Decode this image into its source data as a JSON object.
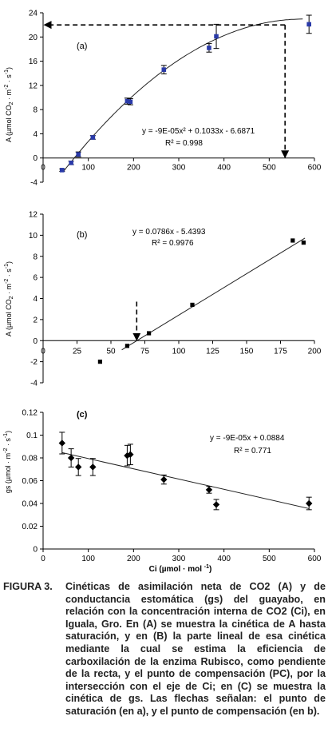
{
  "chart_data": [
    {
      "type": "scatter",
      "panel_label": "(a)",
      "ylabel": "A (µmol CO2 · m-2 · s-1)",
      "xlim": [
        0,
        600
      ],
      "ylim": [
        -4,
        24
      ],
      "xticks": [
        0,
        100,
        200,
        300,
        400,
        500,
        600
      ],
      "yticks": [
        -4,
        0,
        4,
        8,
        12,
        16,
        20,
        24
      ],
      "marker_color": "#2a3aa8",
      "points": [
        {
          "x": 42,
          "y": -2.0,
          "err": 0.2
        },
        {
          "x": 62,
          "y": -0.8,
          "err": 0.3
        },
        {
          "x": 78,
          "y": 0.6,
          "err": 0.4
        },
        {
          "x": 110,
          "y": 3.4,
          "err": 0.3
        },
        {
          "x": 186,
          "y": 9.4,
          "err": 0.5
        },
        {
          "x": 193,
          "y": 9.3,
          "err": 0.5
        },
        {
          "x": 267,
          "y": 14.6,
          "err": 0.7
        },
        {
          "x": 367,
          "y": 18.2,
          "err": 0.7
        },
        {
          "x": 383,
          "y": 20.1,
          "err": 2.0
        },
        {
          "x": 588,
          "y": 22.1,
          "err": 1.5
        }
      ],
      "fit": {
        "type": "poly2",
        "a": -9e-05,
        "b": 0.1033,
        "c": -6.6871,
        "x_from": 45,
        "x_to": 560,
        "x_plateau": 574
      },
      "equation": "y = -9E-05x² + 0.1033x - 6.6871",
      "r2": "R² = 0.998",
      "arrow_h": {
        "y": 22.0,
        "from_x": 535,
        "to_x": 0
      },
      "arrow_v": {
        "x": 535,
        "from_y": 22.0,
        "to_y": 0
      }
    },
    {
      "type": "scatter",
      "panel_label": "(b)",
      "ylabel": "A (µmol CO2 · m-2 · s-1)",
      "xlim": [
        0,
        200
      ],
      "ylim": [
        -4,
        12
      ],
      "xticks": [
        0,
        25,
        50,
        75,
        100,
        125,
        150,
        175,
        200
      ],
      "yticks": [
        -4,
        -2,
        0,
        2,
        4,
        6,
        8,
        10,
        12
      ],
      "marker_color": "#000000",
      "points": [
        {
          "x": 42,
          "y": -2.0
        },
        {
          "x": 62,
          "y": -0.5
        },
        {
          "x": 78,
          "y": 0.7
        },
        {
          "x": 110,
          "y": 3.4
        },
        {
          "x": 184,
          "y": 9.5
        },
        {
          "x": 192,
          "y": 9.3
        }
      ],
      "fit": {
        "type": "linear",
        "a": 0.0786,
        "b": -5.4393,
        "x_from": 58,
        "x_to": 193
      },
      "equation": "y = 0.0786x - 5.4393",
      "r2": "R² = 0.9976",
      "arrow_v": {
        "x": 69,
        "from_y": 3.7,
        "to_y": 0
      }
    },
    {
      "type": "scatter",
      "panel_label": "(c)",
      "ylabel": "gs (µmol · m-2 · s-1)",
      "xlabel": "Ci (µmol · mol -1)",
      "xlim": [
        0,
        600
      ],
      "ylim": [
        0,
        0.12
      ],
      "xticks": [
        0,
        100,
        200,
        300,
        400,
        500,
        600
      ],
      "yticks": [
        0,
        0.02,
        0.04,
        0.06,
        0.08,
        0.1,
        0.12
      ],
      "marker_color": "#000000",
      "points": [
        {
          "x": 42,
          "y": 0.093,
          "err": 0.0095
        },
        {
          "x": 62,
          "y": 0.08,
          "err": 0.008
        },
        {
          "x": 78,
          "y": 0.072,
          "err": 0.0075
        },
        {
          "x": 110,
          "y": 0.072,
          "err": 0.0075
        },
        {
          "x": 186,
          "y": 0.082,
          "err": 0.009
        },
        {
          "x": 193,
          "y": 0.083,
          "err": 0.009
        },
        {
          "x": 267,
          "y": 0.061,
          "err": 0.004
        },
        {
          "x": 367,
          "y": 0.052,
          "err": 0.003
        },
        {
          "x": 383,
          "y": 0.039,
          "err": 0.0045
        },
        {
          "x": 588,
          "y": 0.04,
          "err": 0.0055
        }
      ],
      "fit": {
        "type": "linear",
        "a": -9e-05,
        "b": 0.0884,
        "x_from": 42,
        "x_to": 588
      },
      "equation": "y = -9E-05x + 0.0884",
      "r2": "R² = 0.771"
    }
  ],
  "caption": {
    "label": "FIGURA 3.",
    "text": "Cinéticas de asimilación neta de CO2 (A) y de conductancia estomática (gs) del guayabo, en relación con la concentración interna de CO2 (Ci), en Iguala, Gro. En (A) se muestra la cinética de A hasta saturación, y en (B) la parte lineal de esa cinética mediante la cual se estima la eficiencia de carboxilación de la enzima Rubisco, como pendiente de la recta, y el punto de compensación (PC), por la intersección con el eje de Ci; en (C) se muestra la cinética de gs. Las flechas señalan: el punto de saturación (en a), y el punto de compensación (en b)."
  }
}
